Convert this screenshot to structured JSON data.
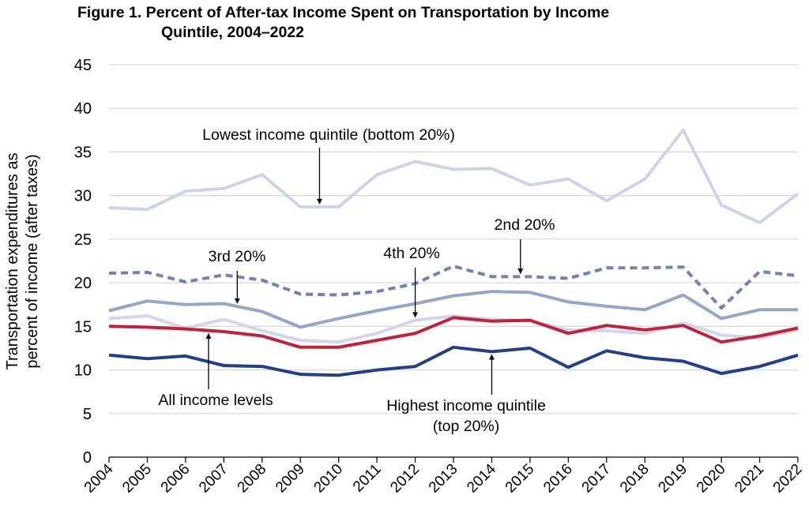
{
  "title_line1": "Figure 1. Percent of After-tax Income Spent on Transportation by Income",
  "title_line2": "Quintile, 2004–2022",
  "colors": {
    "lowest": "#cdd4e6",
    "second": "#7282b4",
    "third": "#96a4c6",
    "fourth": "#d1d7e9",
    "all": "#c5203a",
    "highest": "#233f8c",
    "grid": "#d9d9d9",
    "axis": "#000000"
  },
  "chart_data": {
    "type": "line",
    "title": "Figure 1. Percent of After-tax Income Spent on Transportation by Income Quintile, 2004–2022",
    "xlabel": "",
    "ylabel_lines": [
      "Transportation expenditures as",
      "percent of income (after taxes)"
    ],
    "ylim": [
      0,
      45
    ],
    "yticks": [
      0,
      5,
      10,
      15,
      20,
      25,
      30,
      35,
      40,
      45
    ],
    "grid": true,
    "categories": [
      "2004",
      "2005",
      "2006",
      "2007",
      "2008",
      "2009",
      "2010",
      "2011",
      "2012",
      "2013",
      "2014",
      "2015",
      "2016",
      "2017",
      "2018",
      "2019",
      "2020",
      "2021",
      "2022"
    ],
    "series": [
      {
        "key": "lowest",
        "name": "Lowest income quintile (bottom 20%)",
        "dashed": false,
        "values": [
          28.6,
          28.4,
          30.5,
          30.8,
          32.4,
          28.7,
          28.7,
          32.4,
          33.9,
          33.0,
          33.1,
          31.2,
          31.9,
          29.4,
          31.9,
          37.5,
          28.9,
          26.9,
          30.2
        ]
      },
      {
        "key": "second",
        "name": "2nd 20%",
        "dashed": true,
        "values": [
          21.1,
          21.2,
          20.1,
          20.9,
          20.3,
          18.7,
          18.6,
          19.0,
          19.9,
          21.9,
          20.7,
          20.7,
          20.5,
          21.7,
          21.7,
          21.8,
          17.1,
          21.3,
          20.8
        ]
      },
      {
        "key": "third",
        "name": "3rd 20%",
        "dashed": false,
        "values": [
          16.8,
          17.9,
          17.5,
          17.6,
          16.7,
          14.9,
          15.9,
          16.8,
          17.6,
          18.5,
          19.0,
          18.9,
          17.8,
          17.3,
          16.9,
          18.6,
          15.9,
          16.9,
          16.9
        ]
      },
      {
        "key": "fourth",
        "name": "4th 20%",
        "dashed": false,
        "values": [
          15.9,
          16.2,
          14.8,
          15.8,
          14.5,
          13.4,
          13.2,
          14.2,
          15.7,
          16.2,
          15.8,
          15.6,
          14.6,
          14.5,
          14.2,
          15.4,
          14.0,
          13.7,
          14.6
        ]
      },
      {
        "key": "all",
        "name": "All income levels",
        "dashed": false,
        "values": [
          15.0,
          14.9,
          14.7,
          14.4,
          13.9,
          12.6,
          12.6,
          13.4,
          14.2,
          16.0,
          15.6,
          15.7,
          14.2,
          15.1,
          14.6,
          15.1,
          13.2,
          13.9,
          14.8
        ]
      },
      {
        "key": "highest",
        "name": "Highest income quintile (top 20%)",
        "dashed": false,
        "values": [
          11.7,
          11.3,
          11.6,
          10.5,
          10.4,
          9.5,
          9.4,
          10.0,
          10.4,
          12.6,
          12.1,
          12.5,
          10.3,
          12.2,
          11.4,
          11.0,
          9.6,
          10.4,
          11.7
        ]
      }
    ],
    "annotations": [
      {
        "series": "lowest",
        "text": "Lowest income quintile (bottom 20%)",
        "year_index": 5.5
      },
      {
        "series": "second",
        "text": "2nd 20%",
        "year_index": 10.75
      },
      {
        "series": "third",
        "text": "3rd 20%",
        "year_index": 3.35
      },
      {
        "series": "fourth",
        "text": "4th 20%",
        "year_index": 8.0
      },
      {
        "series": "all",
        "text": "All income levels",
        "year_index": 2.6
      },
      {
        "series": "highest",
        "text_lines": [
          "Highest income quintile",
          "(top 20%)"
        ],
        "year_index": 10.0
      }
    ]
  }
}
